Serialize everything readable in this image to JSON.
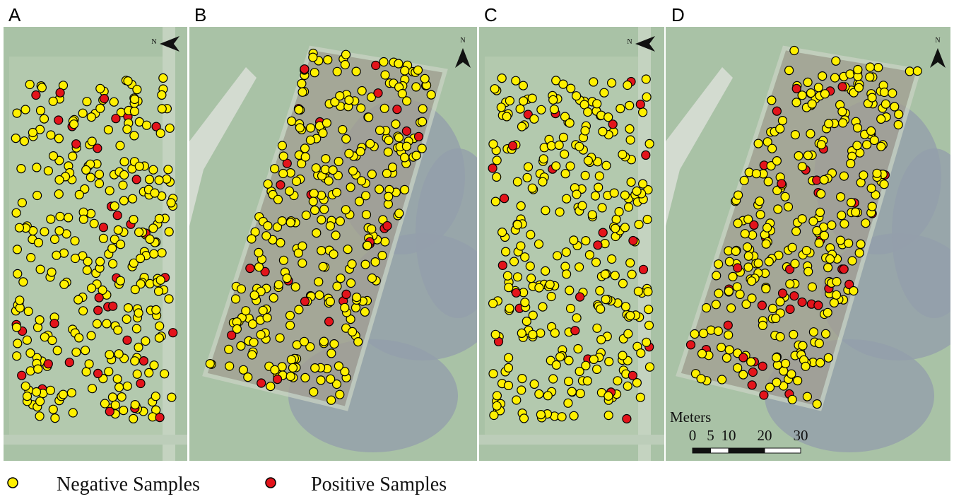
{
  "panels": [
    {
      "label": "A"
    },
    {
      "label": "B"
    },
    {
      "label": "C"
    },
    {
      "label": "D"
    }
  ],
  "north_label": "N",
  "scale_bar": {
    "title": "Meters",
    "ticks": [
      0,
      5,
      10,
      20,
      30
    ]
  },
  "legend": [
    {
      "label": "Negative Samples",
      "color": "#fff000"
    },
    {
      "label": "Positive Samples",
      "color": "#e3141b"
    }
  ]
}
